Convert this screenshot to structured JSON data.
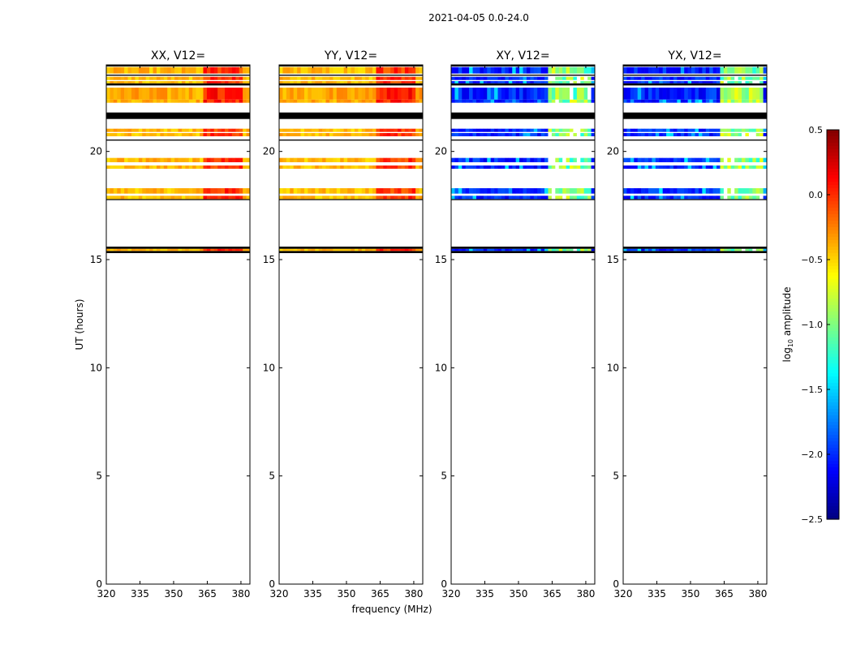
{
  "chart_data": {
    "type": "heatmap",
    "suptitle": "2021-04-05 0.0-24.0",
    "xlabel": "frequency (MHz)",
    "ylabel": "UT (hours)",
    "xlim": [
      320,
      384
    ],
    "ylim": [
      0,
      24
    ],
    "xticks": [
      320,
      335,
      350,
      365,
      380
    ],
    "yticks": [
      0,
      5,
      10,
      15,
      20
    ],
    "panels": [
      {
        "title": "XX, V12=",
        "kind": "auto"
      },
      {
        "title": "YY, V12=",
        "kind": "auto"
      },
      {
        "title": "XY, V12=",
        "kind": "cross"
      },
      {
        "title": "YX, V12=",
        "kind": "cross"
      }
    ],
    "bands": [
      {
        "y0": 15.3,
        "y1": 15.4,
        "fill": "gap"
      },
      {
        "y0": 15.4,
        "y1": 15.5,
        "fill": "data"
      },
      {
        "y0": 15.5,
        "y1": 15.6,
        "fill": "gap"
      },
      {
        "y0": 17.75,
        "y1": 17.8,
        "fill": "gap"
      },
      {
        "y0": 17.8,
        "y1": 17.95,
        "fill": "data"
      },
      {
        "y0": 18.05,
        "y1": 18.3,
        "fill": "data"
      },
      {
        "y0": 19.2,
        "y1": 19.35,
        "fill": "data"
      },
      {
        "y0": 19.5,
        "y1": 19.7,
        "fill": "data"
      },
      {
        "y0": 20.5,
        "y1": 20.55,
        "fill": "gap"
      },
      {
        "y0": 20.7,
        "y1": 20.85,
        "fill": "data"
      },
      {
        "y0": 20.9,
        "y1": 21.05,
        "fill": "data"
      },
      {
        "y0": 21.5,
        "y1": 21.8,
        "fill": "gap"
      },
      {
        "y0": 22.25,
        "y1": 22.4,
        "fill": "data"
      },
      {
        "y0": 22.4,
        "y1": 22.95,
        "fill": "data"
      },
      {
        "y0": 23.05,
        "y1": 23.15,
        "fill": "gap"
      },
      {
        "y0": 23.15,
        "y1": 23.25,
        "fill": "data"
      },
      {
        "y0": 23.3,
        "y1": 23.45,
        "fill": "data"
      },
      {
        "y0": 23.5,
        "y1": 23.55,
        "fill": "gap"
      },
      {
        "y0": 23.6,
        "y1": 23.9,
        "fill": "data"
      },
      {
        "y0": 23.93,
        "y1": 24.0,
        "fill": "gap"
      }
    ],
    "colorbar": {
      "label_prefix": "log",
      "label_sub": "10",
      "label_suffix": " amplitude",
      "range": [
        -2.5,
        0.5
      ],
      "ticks": [
        "0.5",
        "0.0",
        "−0.5",
        "−1.0",
        "−1.5",
        "−2.0",
        "−2.5"
      ],
      "tick_values": [
        0.5,
        0.0,
        -0.5,
        -1.0,
        -1.5,
        -2.0,
        -2.5
      ],
      "colormap": "jet"
    }
  }
}
